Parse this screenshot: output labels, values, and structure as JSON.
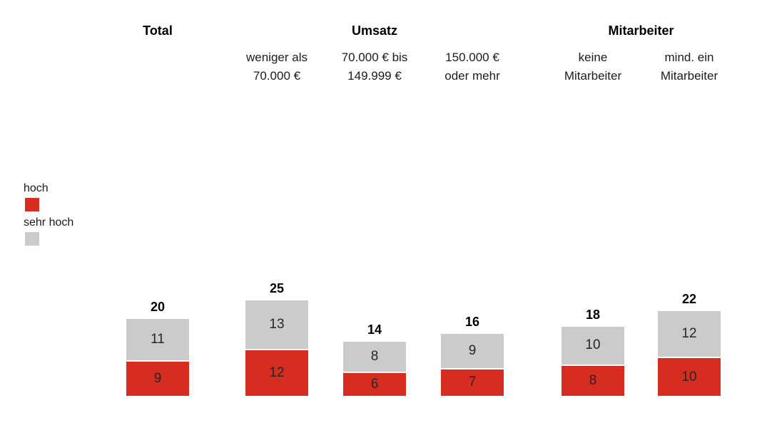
{
  "chart_data": {
    "type": "bar",
    "stacked": true,
    "orientation": "vertical",
    "grid": false,
    "axes_visible": false,
    "legend_position": "left",
    "value_labels": "inside-segments",
    "total_labels": "above-bars",
    "groups": [
      {
        "label": "Total",
        "columns": [
          0
        ]
      },
      {
        "label": "Umsatz",
        "columns": [
          1,
          2,
          3
        ]
      },
      {
        "label": "Mitarbeiter",
        "columns": [
          4,
          5
        ]
      }
    ],
    "categories": [
      "Total",
      "weniger als 70.000 €",
      "70.000 € bis 149.999 €",
      "150.000 € oder mehr",
      "keine Mitarbeiter",
      "mind. ein Mitarbeiter"
    ],
    "category_label_lines": [
      [
        "",
        ""
      ],
      [
        "weniger als",
        "70.000 €"
      ],
      [
        "70.000 € bis",
        "149.999 €"
      ],
      [
        "150.000 €",
        "oder mehr"
      ],
      [
        "keine",
        "Mitarbeiter"
      ],
      [
        "mind. ein",
        "Mitarbeiter"
      ]
    ],
    "series": [
      {
        "name": "hoch",
        "color": "#d62d20",
        "values": [
          9,
          12,
          6,
          7,
          8,
          10
        ]
      },
      {
        "name": "sehr hoch",
        "color": "#cbcbcb",
        "values": [
          11,
          13,
          8,
          9,
          10,
          12
        ]
      }
    ],
    "totals": [
      20,
      25,
      14,
      16,
      18,
      22
    ]
  }
}
